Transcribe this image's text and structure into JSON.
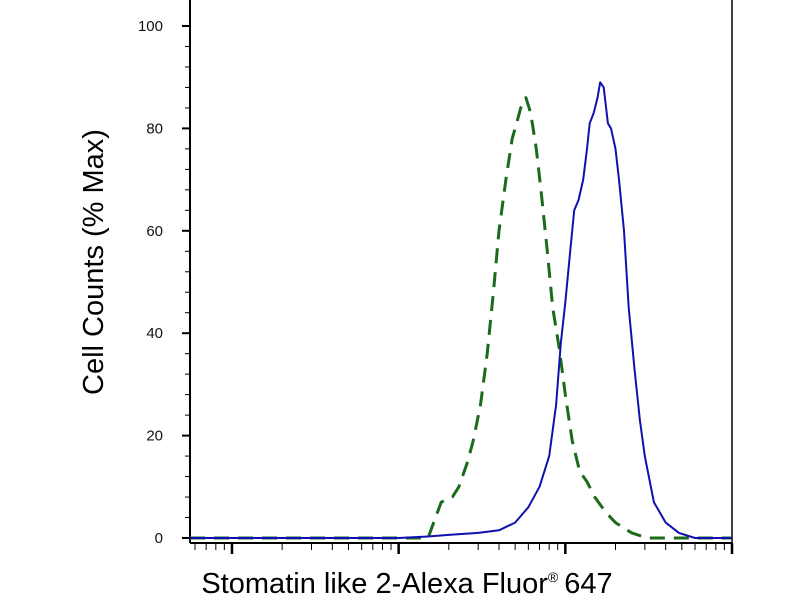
{
  "chart_data": {
    "type": "line",
    "title": "",
    "xlabel": "Stomatin like 2-Alexa Fluor",
    "xlabel_superscript": "®",
    "xlabel_suffix": "647",
    "ylabel": "Cell Counts (% Max)",
    "x_scale": "log",
    "xlim": [
      0.56,
      1000
    ],
    "ylim": [
      0,
      100
    ],
    "y_ticks": [
      0,
      20,
      40,
      60,
      80,
      100
    ],
    "x_major_ticks": [
      1,
      10,
      100,
      1000
    ],
    "grid": false,
    "legend": "none",
    "colors": {
      "dashed": "#1a6b1a",
      "solid": "#1010b0",
      "axis": "#000000"
    },
    "series": [
      {
        "style": "dashed",
        "points": [
          [
            0.56,
            0
          ],
          [
            1,
            0
          ],
          [
            2,
            0
          ],
          [
            5,
            0
          ],
          [
            10,
            0
          ],
          [
            15,
            0
          ],
          [
            18,
            7
          ],
          [
            21,
            8
          ],
          [
            23,
            10
          ],
          [
            26,
            15
          ],
          [
            28,
            19
          ],
          [
            31,
            26
          ],
          [
            34,
            36
          ],
          [
            37,
            48
          ],
          [
            40,
            60
          ],
          [
            44,
            70
          ],
          [
            48,
            78
          ],
          [
            51,
            81
          ],
          [
            54,
            84
          ],
          [
            58,
            86
          ],
          [
            62,
            83
          ],
          [
            67,
            76
          ],
          [
            72,
            67
          ],
          [
            78,
            56
          ],
          [
            84,
            45
          ],
          [
            92,
            37
          ],
          [
            100,
            28
          ],
          [
            110,
            19
          ],
          [
            122,
            13
          ],
          [
            135,
            11
          ],
          [
            150,
            8
          ],
          [
            175,
            5
          ],
          [
            200,
            3
          ],
          [
            250,
            1
          ],
          [
            310,
            0
          ],
          [
            400,
            0
          ],
          [
            1000,
            0
          ]
        ]
      },
      {
        "style": "solid",
        "points": [
          [
            0.56,
            0
          ],
          [
            1,
            0
          ],
          [
            10,
            0
          ],
          [
            15,
            0.3
          ],
          [
            20,
            0.6
          ],
          [
            30,
            1
          ],
          [
            40,
            1.5
          ],
          [
            50,
            3
          ],
          [
            60,
            6
          ],
          [
            70,
            10
          ],
          [
            80,
            16
          ],
          [
            88,
            26
          ],
          [
            94,
            38
          ],
          [
            100,
            46
          ],
          [
            107,
            56
          ],
          [
            113,
            64
          ],
          [
            120,
            66
          ],
          [
            128,
            70
          ],
          [
            135,
            76
          ],
          [
            140,
            81
          ],
          [
            148,
            83
          ],
          [
            156,
            86
          ],
          [
            162,
            89
          ],
          [
            170,
            88
          ],
          [
            180,
            81
          ],
          [
            188,
            80
          ],
          [
            200,
            76
          ],
          [
            210,
            70
          ],
          [
            225,
            60
          ],
          [
            240,
            45
          ],
          [
            260,
            33
          ],
          [
            280,
            23
          ],
          [
            300,
            16
          ],
          [
            340,
            7
          ],
          [
            400,
            3
          ],
          [
            480,
            1
          ],
          [
            600,
            0
          ],
          [
            1000,
            0
          ]
        ]
      }
    ]
  }
}
